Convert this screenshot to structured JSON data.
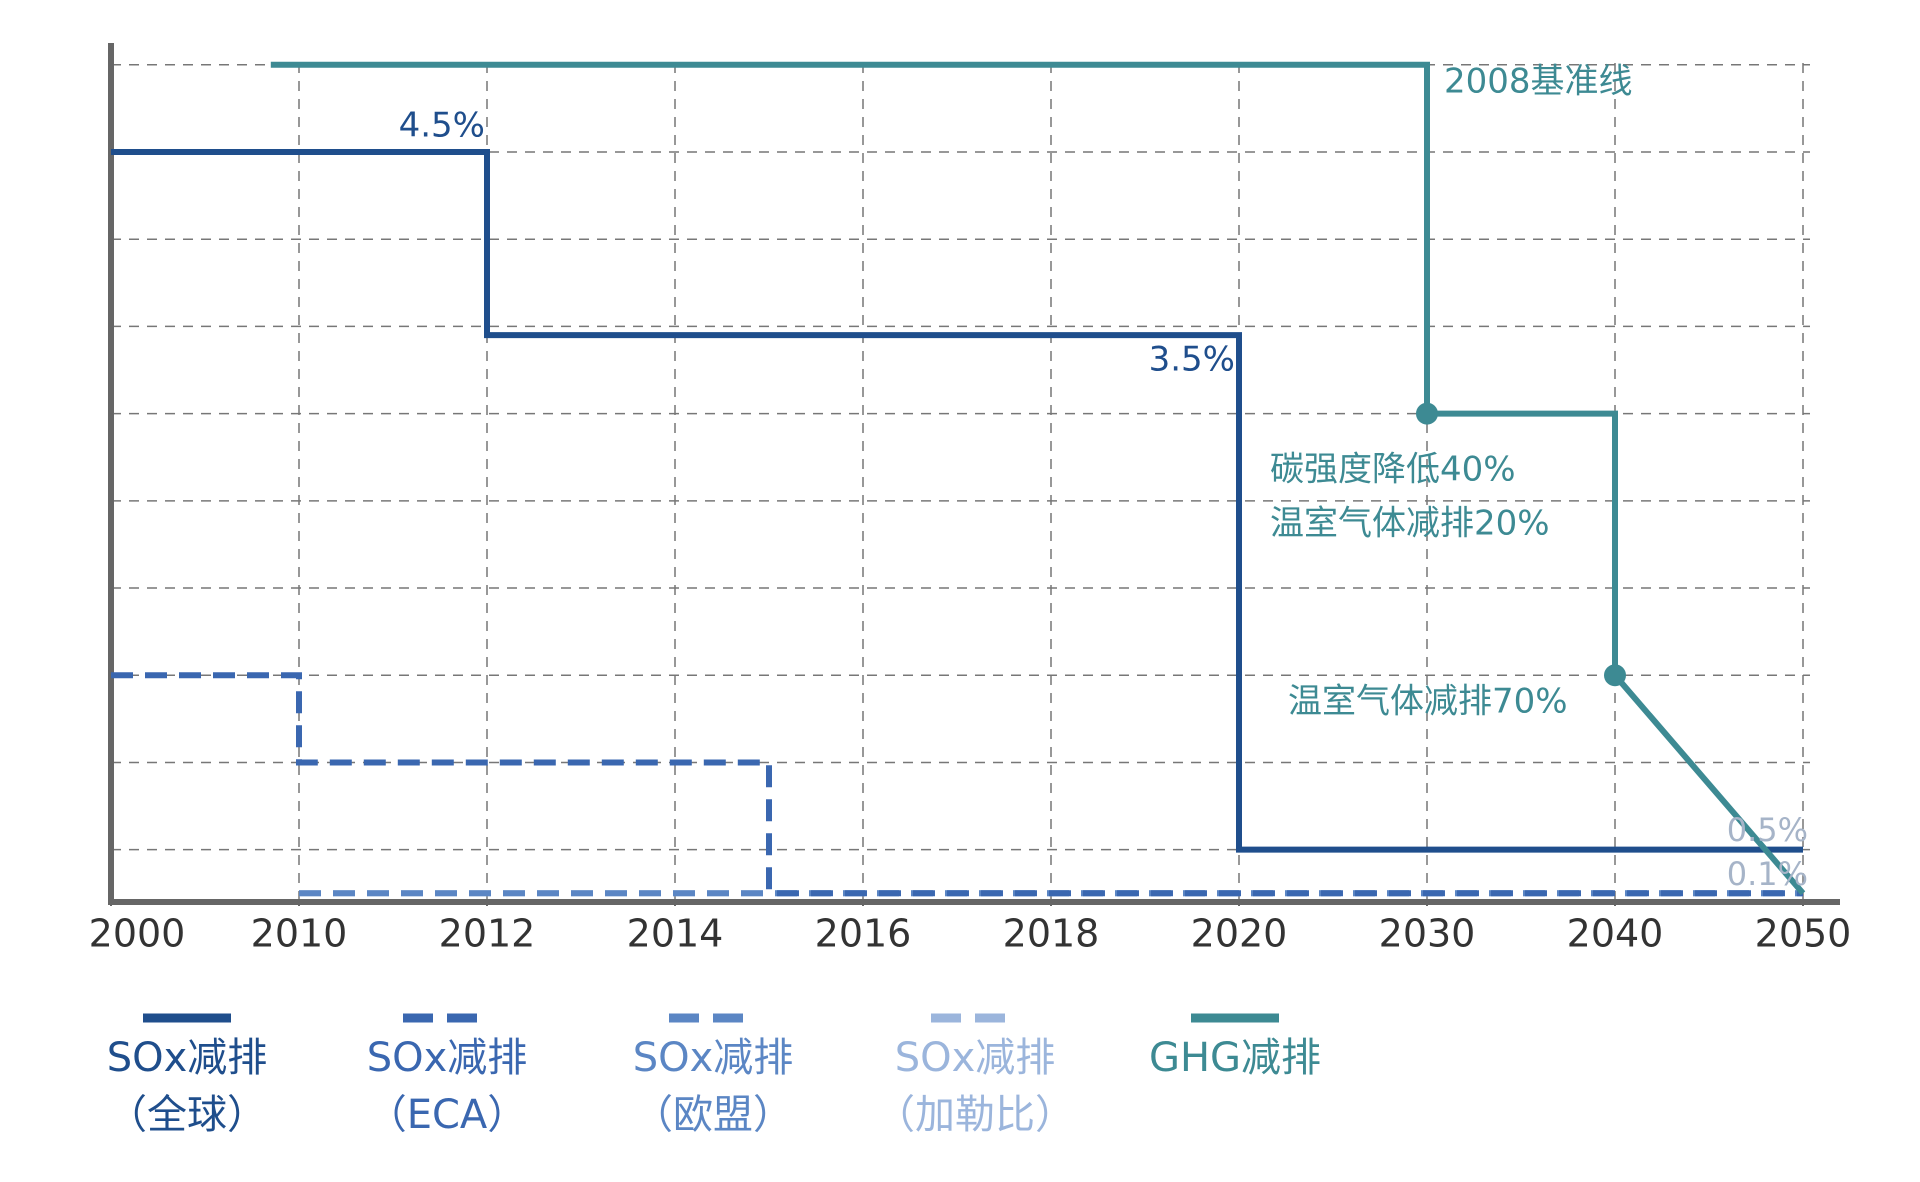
{
  "chart_data": {
    "type": "step",
    "xticks": [
      2000,
      2010,
      2012,
      2014,
      2016,
      2018,
      2020,
      2030,
      2040,
      2050
    ],
    "ylim": [
      -0.6,
      9.25
    ],
    "yticks": [
      0,
      1,
      2,
      3,
      4,
      5,
      6,
      7,
      8,
      9
    ],
    "grid": true,
    "series": [
      {
        "name": "SOx减排\n（全球）",
        "color": "#1f4e8c",
        "style": "solid",
        "x": [
          2000,
          2012,
          2012,
          2020,
          2020,
          2050
        ],
        "values": [
          8,
          8,
          5.9,
          5.9,
          0,
          0
        ]
      },
      {
        "name": "SOx减排\n（ECA）",
        "color": "#3a67b0",
        "style": "dashed",
        "x": [
          2000,
          2010,
          2010,
          2015,
          2015,
          2050
        ],
        "values": [
          2,
          2,
          1,
          1,
          -0.5,
          -0.5
        ]
      },
      {
        "name": "SOx减排\n（欧盟）",
        "color": "#5b86c4",
        "style": "dashed",
        "x": [
          2010,
          2050
        ],
        "values": [
          -0.5,
          -0.5
        ]
      },
      {
        "name": "SOx减排\n（加勒比）",
        "color": "#9bb5dc",
        "style": "dashed",
        "x": [
          2010,
          2050
        ],
        "values": [
          -0.5,
          -0.5
        ]
      },
      {
        "name": "GHG减排",
        "color": "#3d8a93",
        "style": "solid",
        "x": [
          2008.5,
          2030,
          2030,
          2040,
          2040,
          2050
        ],
        "values": [
          9,
          9,
          5,
          5,
          2,
          -0.5
        ]
      }
    ],
    "annotations": [
      "2008基准线",
      "4.5%",
      "3.5%",
      "碳强度降低40%",
      "温室气体减排20%",
      "温室气体减排70%",
      "0.5%",
      "0.1%"
    ]
  }
}
